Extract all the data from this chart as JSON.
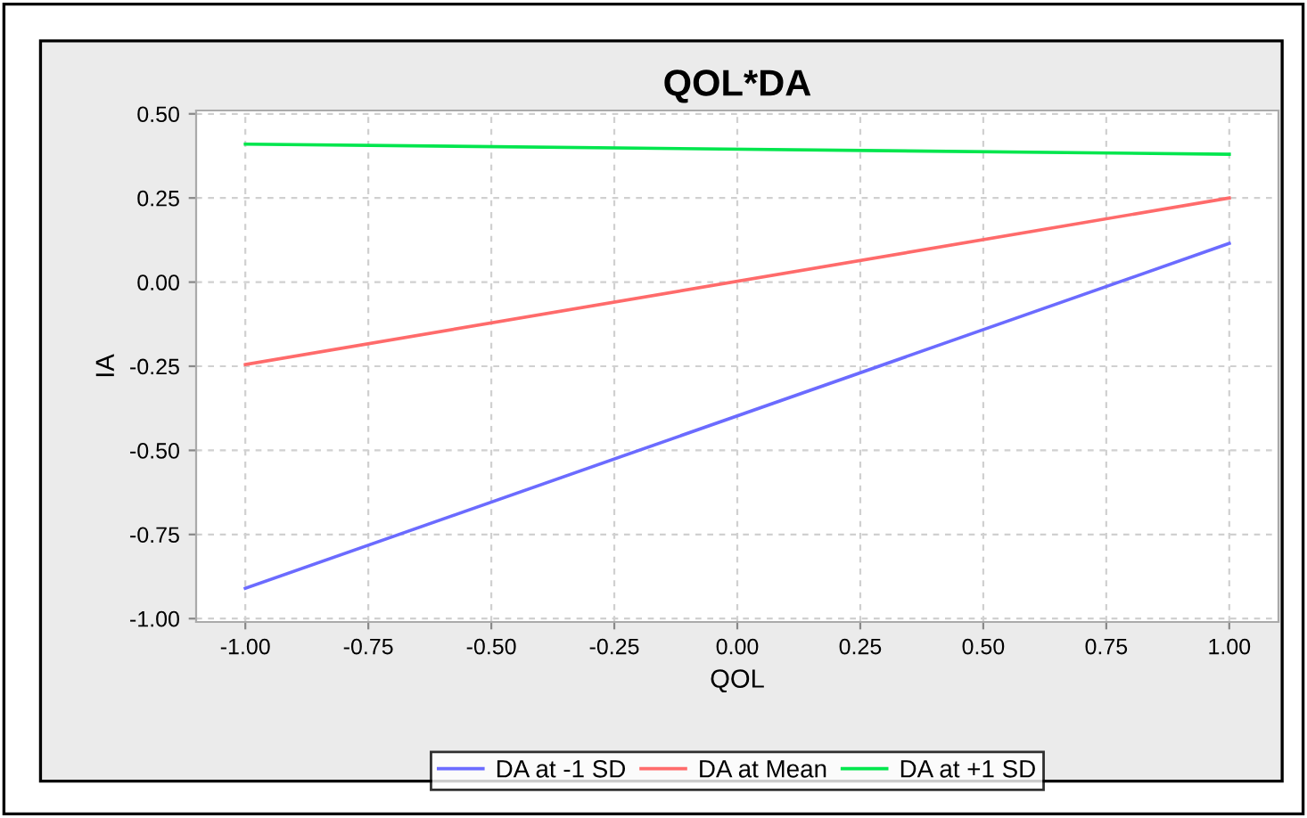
{
  "chart_data": {
    "type": "line",
    "title": "QOL*DA",
    "xlabel": "QOL",
    "ylabel": "IA",
    "x": [
      -1.0,
      1.0
    ],
    "series": [
      {
        "name": "DA at -1 SD",
        "color": "#6b6bff",
        "values": [
          -0.91,
          0.115
        ]
      },
      {
        "name": "DA at Mean",
        "color": "#ff6b6b",
        "values": [
          -0.245,
          0.25
        ]
      },
      {
        "name": "DA at +1 SD",
        "color": "#00e64d",
        "values": [
          0.41,
          0.38
        ]
      }
    ],
    "xlim": [
      -1.1,
      1.1
    ],
    "ylim": [
      -1.01,
      0.51
    ],
    "xticks": [
      {
        "value": -1.0,
        "label": "-1.00"
      },
      {
        "value": -0.75,
        "label": "-0.75"
      },
      {
        "value": -0.5,
        "label": "-0.50"
      },
      {
        "value": -0.25,
        "label": "-0.25"
      },
      {
        "value": 0.0,
        "label": "0.00"
      },
      {
        "value": 0.25,
        "label": "0.25"
      },
      {
        "value": 0.5,
        "label": "0.50"
      },
      {
        "value": 0.75,
        "label": "0.75"
      },
      {
        "value": 1.0,
        "label": "1.00"
      }
    ],
    "yticks": [
      {
        "value": -1.0,
        "label": "-1.00"
      },
      {
        "value": -0.75,
        "label": "-0.75"
      },
      {
        "value": -0.5,
        "label": "-0.50"
      },
      {
        "value": -0.25,
        "label": "-0.25"
      },
      {
        "value": 0.0,
        "label": "0.00"
      },
      {
        "value": 0.25,
        "label": "0.25"
      },
      {
        "value": 0.5,
        "label": "0.50"
      }
    ],
    "grid": true,
    "legend": "bottom",
    "marker": "none",
    "line_style": "solid"
  }
}
